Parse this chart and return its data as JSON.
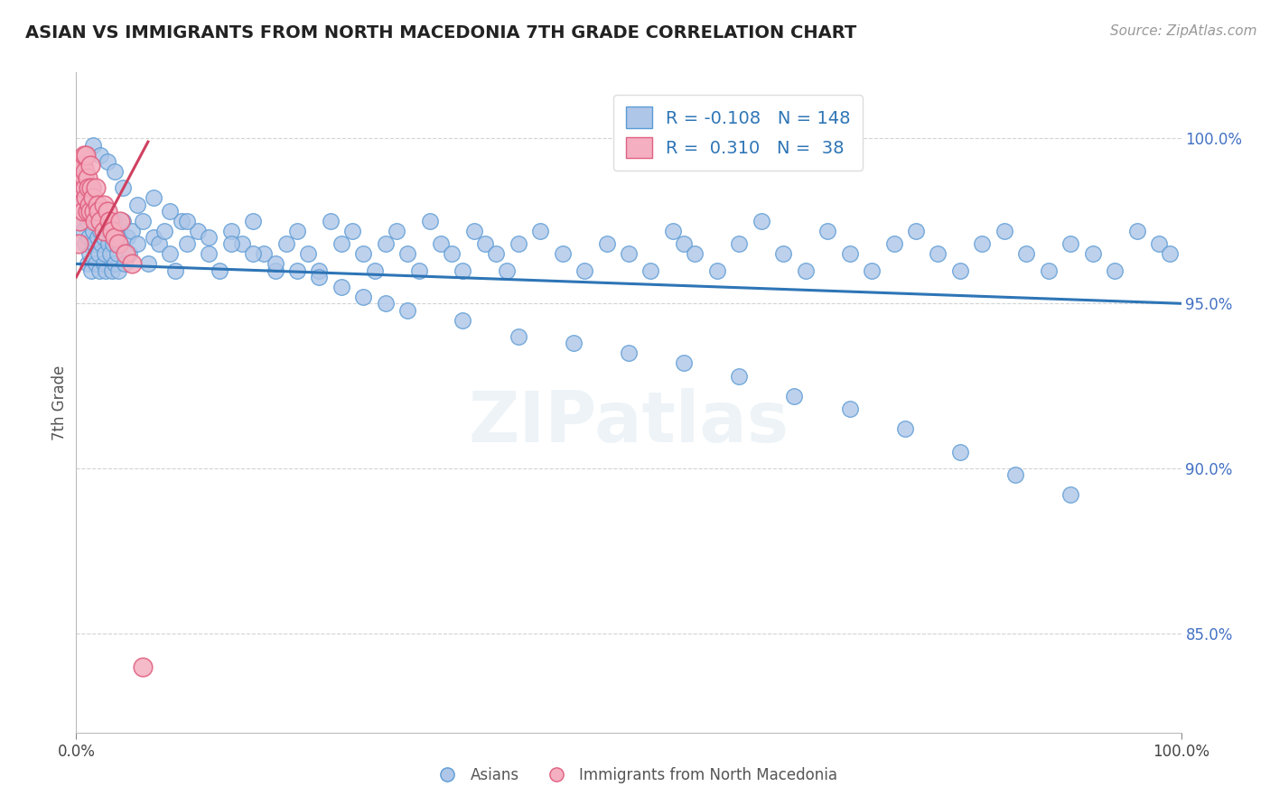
{
  "title": "ASIAN VS IMMIGRANTS FROM NORTH MACEDONIA 7TH GRADE CORRELATION CHART",
  "source": "Source: ZipAtlas.com",
  "ylabel": "7th Grade",
  "xlim": [
    0.0,
    1.0
  ],
  "ylim": [
    0.82,
    1.02
  ],
  "x_ticks": [
    0.0,
    1.0
  ],
  "x_tick_labels": [
    "0.0%",
    "100.0%"
  ],
  "y_ticks": [
    0.85,
    0.9,
    0.95,
    1.0
  ],
  "y_tick_labels": [
    "85.0%",
    "90.0%",
    "95.0%",
    "100.0%"
  ],
  "r_asian": -0.108,
  "n_asian": 148,
  "r_macedonia": 0.31,
  "n_macedonia": 38,
  "blue_color": "#aec6e8",
  "blue_edge_color": "#5b9bd5",
  "pink_color": "#f4afc0",
  "pink_edge_color": "#e06080",
  "blue_line_color": "#2e75b6",
  "pink_line_color": "#d04060",
  "legend_r_color": "#2e75b6",
  "background_color": "#ffffff",
  "grid_color": "#c8c8c8",
  "watermark": "ZIPatlas",
  "blue_line_x0": 0.0,
  "blue_line_y0": 0.962,
  "blue_line_x1": 1.0,
  "blue_line_y1": 0.95,
  "pink_line_x0": 0.0,
  "pink_line_y0": 0.958,
  "pink_line_x1": 0.065,
  "pink_line_y1": 0.999,
  "asian_x": [
    0.003,
    0.005,
    0.006,
    0.007,
    0.008,
    0.009,
    0.01,
    0.01,
    0.011,
    0.012,
    0.013,
    0.014,
    0.015,
    0.015,
    0.016,
    0.017,
    0.018,
    0.019,
    0.02,
    0.02,
    0.021,
    0.022,
    0.023,
    0.024,
    0.025,
    0.025,
    0.026,
    0.027,
    0.028,
    0.029,
    0.03,
    0.031,
    0.032,
    0.033,
    0.034,
    0.035,
    0.036,
    0.037,
    0.038,
    0.039,
    0.04,
    0.042,
    0.044,
    0.046,
    0.048,
    0.05,
    0.055,
    0.06,
    0.065,
    0.07,
    0.075,
    0.08,
    0.085,
    0.09,
    0.095,
    0.1,
    0.11,
    0.12,
    0.13,
    0.14,
    0.15,
    0.16,
    0.17,
    0.18,
    0.19,
    0.2,
    0.21,
    0.22,
    0.23,
    0.24,
    0.25,
    0.26,
    0.27,
    0.28,
    0.29,
    0.3,
    0.31,
    0.32,
    0.33,
    0.34,
    0.35,
    0.36,
    0.37,
    0.38,
    0.39,
    0.4,
    0.42,
    0.44,
    0.46,
    0.48,
    0.5,
    0.52,
    0.54,
    0.55,
    0.56,
    0.58,
    0.6,
    0.62,
    0.64,
    0.66,
    0.68,
    0.7,
    0.72,
    0.74,
    0.76,
    0.78,
    0.8,
    0.82,
    0.84,
    0.86,
    0.88,
    0.9,
    0.92,
    0.94,
    0.96,
    0.98,
    0.99,
    0.015,
    0.022,
    0.028,
    0.035,
    0.042,
    0.055,
    0.07,
    0.085,
    0.1,
    0.12,
    0.14,
    0.16,
    0.18,
    0.2,
    0.22,
    0.24,
    0.26,
    0.28,
    0.3,
    0.35,
    0.4,
    0.45,
    0.5,
    0.55,
    0.6,
    0.65,
    0.7,
    0.75,
    0.8,
    0.85,
    0.9
  ],
  "asian_y": [
    0.975,
    0.98,
    0.972,
    0.985,
    0.968,
    0.99,
    0.962,
    0.975,
    0.97,
    0.965,
    0.978,
    0.96,
    0.972,
    0.985,
    0.968,
    0.975,
    0.962,
    0.97,
    0.978,
    0.965,
    0.96,
    0.972,
    0.968,
    0.975,
    0.97,
    0.962,
    0.965,
    0.96,
    0.975,
    0.968,
    0.972,
    0.965,
    0.96,
    0.968,
    0.975,
    0.962,
    0.97,
    0.965,
    0.96,
    0.972,
    0.968,
    0.975,
    0.962,
    0.97,
    0.965,
    0.972,
    0.968,
    0.975,
    0.962,
    0.97,
    0.968,
    0.972,
    0.965,
    0.96,
    0.975,
    0.968,
    0.972,
    0.965,
    0.96,
    0.972,
    0.968,
    0.975,
    0.965,
    0.96,
    0.968,
    0.972,
    0.965,
    0.96,
    0.975,
    0.968,
    0.972,
    0.965,
    0.96,
    0.968,
    0.972,
    0.965,
    0.96,
    0.975,
    0.968,
    0.965,
    0.96,
    0.972,
    0.968,
    0.965,
    0.96,
    0.968,
    0.972,
    0.965,
    0.96,
    0.968,
    0.965,
    0.96,
    0.972,
    0.968,
    0.965,
    0.96,
    0.968,
    0.975,
    0.965,
    0.96,
    0.972,
    0.965,
    0.96,
    0.968,
    0.972,
    0.965,
    0.96,
    0.968,
    0.972,
    0.965,
    0.96,
    0.968,
    0.965,
    0.96,
    0.972,
    0.968,
    0.965,
    0.998,
    0.995,
    0.993,
    0.99,
    0.985,
    0.98,
    0.982,
    0.978,
    0.975,
    0.97,
    0.968,
    0.965,
    0.962,
    0.96,
    0.958,
    0.955,
    0.952,
    0.95,
    0.948,
    0.945,
    0.94,
    0.938,
    0.935,
    0.932,
    0.928,
    0.922,
    0.918,
    0.912,
    0.905,
    0.898,
    0.892
  ],
  "mac_x": [
    0.002,
    0.003,
    0.004,
    0.005,
    0.005,
    0.006,
    0.006,
    0.007,
    0.007,
    0.008,
    0.008,
    0.009,
    0.009,
    0.01,
    0.01,
    0.011,
    0.012,
    0.013,
    0.013,
    0.014,
    0.015,
    0.016,
    0.017,
    0.018,
    0.019,
    0.02,
    0.022,
    0.025,
    0.025,
    0.028,
    0.03,
    0.032,
    0.035,
    0.038,
    0.04,
    0.045,
    0.05,
    0.06
  ],
  "mac_y": [
    0.968,
    0.975,
    0.98,
    0.985,
    0.99,
    0.992,
    0.978,
    0.995,
    0.988,
    0.985,
    0.99,
    0.982,
    0.995,
    0.978,
    0.988,
    0.985,
    0.98,
    0.978,
    0.992,
    0.985,
    0.982,
    0.978,
    0.975,
    0.985,
    0.98,
    0.978,
    0.975,
    0.98,
    0.972,
    0.978,
    0.975,
    0.972,
    0.97,
    0.968,
    0.975,
    0.965,
    0.962,
    0.84
  ]
}
